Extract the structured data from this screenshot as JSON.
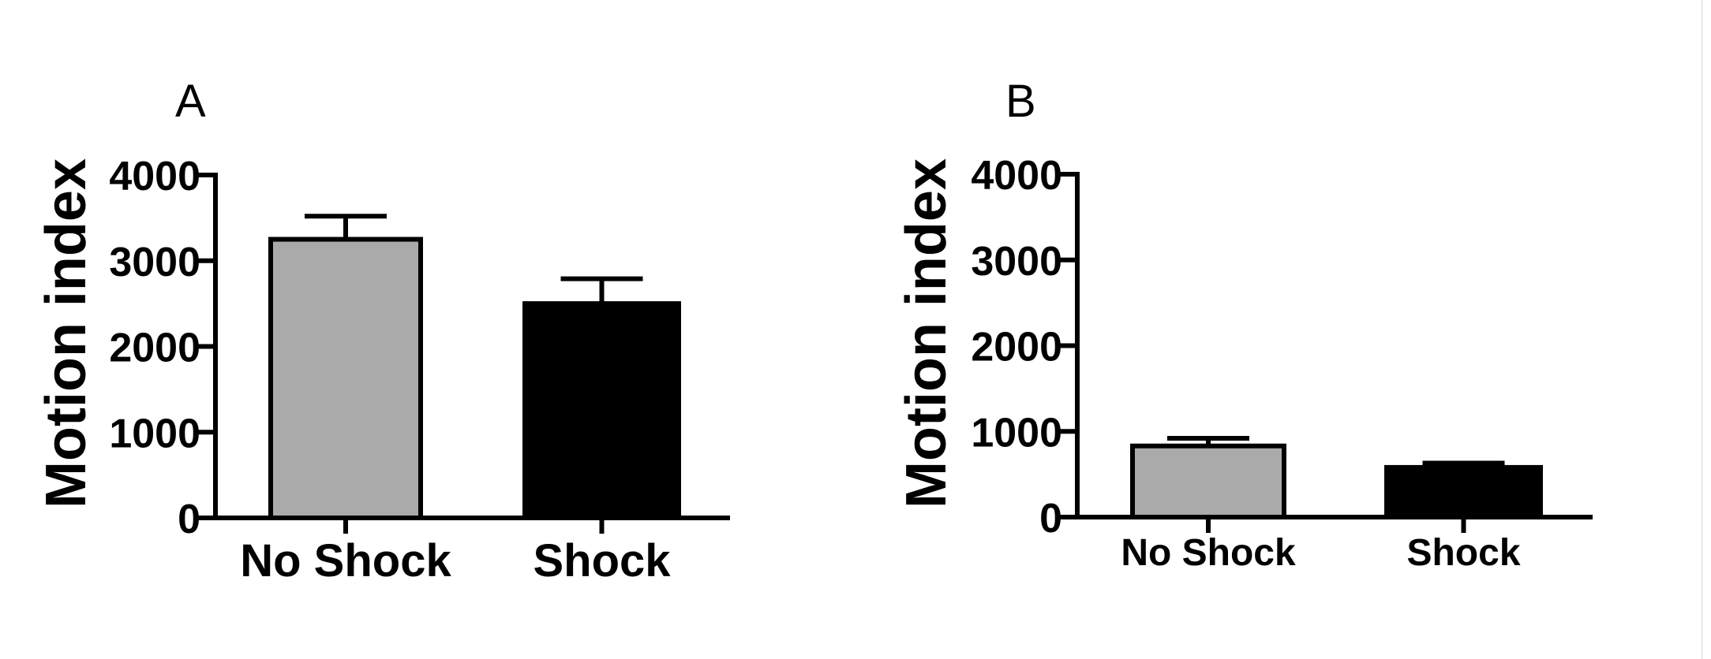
{
  "chart_data": [
    {
      "type": "bar",
      "panel": "A",
      "ylabel": "Motion index",
      "ylim": [
        0,
        4000
      ],
      "yticks": [
        "0",
        "1000",
        "2000",
        "3000",
        "4000"
      ],
      "categories": [
        "No Shock",
        "Shock"
      ],
      "values": [
        3250,
        2500
      ],
      "errors": [
        270,
        290
      ],
      "colors": [
        "#aaaaaa",
        "#000000"
      ]
    },
    {
      "type": "bar",
      "panel": "B",
      "ylabel": "Motion index",
      "ylim": [
        0,
        4000
      ],
      "yticks": [
        "0",
        "1000",
        "2000",
        "3000",
        "4000"
      ],
      "categories": [
        "No Shock",
        "Shock"
      ],
      "values": [
        830,
        580
      ],
      "errors": [
        90,
        50
      ],
      "colors": [
        "#aaaaaa",
        "#000000"
      ]
    }
  ]
}
